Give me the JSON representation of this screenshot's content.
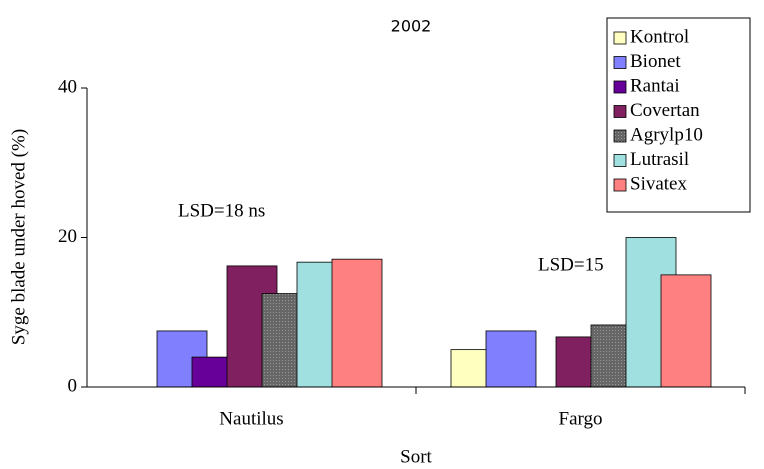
{
  "chart_data": {
    "type": "bar",
    "title": "2002",
    "x_label": "Sort",
    "y_label": "Syge blade under hoved (%)",
    "categories": [
      "Nautilus",
      "Fargo"
    ],
    "series": [
      {
        "name": "Kontrol",
        "color": "#ffffc0",
        "values": [
          null,
          5
        ]
      },
      {
        "name": "Bionet",
        "color": "#8080ff",
        "values": [
          7.5,
          7.5
        ]
      },
      {
        "name": "Rantai",
        "color": "#660099",
        "values": [
          4,
          null
        ]
      },
      {
        "name": "Covertan",
        "color": "#802060",
        "values": [
          16.2,
          6.7
        ]
      },
      {
        "name": "Agrylp10",
        "color": "#666666",
        "values": [
          12.5,
          8.3
        ]
      },
      {
        "name": "Lutrasil",
        "color": "#a0e0e0",
        "values": [
          16.7,
          20
        ]
      },
      {
        "name": "Sivatex",
        "color": "#ff8080",
        "values": [
          17.1,
          15
        ]
      }
    ],
    "annotations": [
      "LSD=18 ns",
      "LSD=15"
    ],
    "ylim": [
      0,
      40
    ],
    "yticks": [
      0,
      20,
      40
    ],
    "grid": false,
    "legend": "upper right"
  }
}
